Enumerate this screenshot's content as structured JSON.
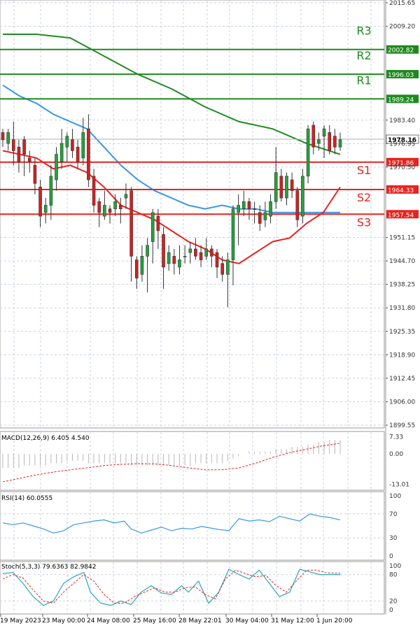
{
  "chart_data": {
    "type": "candlestick",
    "main": {
      "y_ticks": [
        "2015.65",
        "2009.20",
        "2002.82",
        "1996.03",
        "1989.24",
        "1983.40",
        "1978.16",
        "1976.95",
        "1971.86",
        "1970.50",
        "1964.33",
        "1957.54",
        "1951.15",
        "1944.70",
        "1938.25",
        "1931.80",
        "1925.35",
        "1918.90",
        "1912.45",
        "1906.00",
        "1899.55"
      ],
      "ylim": [
        1899.55,
        2015.65
      ],
      "levels": [
        {
          "label": "R3",
          "value": 2002.82,
          "color": "#1e8a1e"
        },
        {
          "label": "R2",
          "value": 1996.03,
          "color": "#1e8a1e"
        },
        {
          "label": "R1",
          "value": 1989.24,
          "color": "#1e8a1e"
        },
        {
          "label": "S1",
          "value": 1971.86,
          "color": "#e8231f"
        },
        {
          "label": "S2",
          "value": 1964.33,
          "color": "#e8231f"
        },
        {
          "label": "S3",
          "value": 1957.54,
          "color": "#e8231f"
        }
      ],
      "current_price": 1978.16,
      "candles": [
        [
          1980,
          1978,
          1981,
          1976
        ],
        [
          1977,
          1980,
          1981,
          1975
        ],
        [
          1978,
          1975,
          1983,
          1971
        ],
        [
          1976,
          1972,
          1978,
          1969
        ],
        [
          1978,
          1974,
          1979,
          1968
        ],
        [
          1973,
          1972,
          1975,
          1969
        ],
        [
          1971,
          1966,
          1973,
          1963
        ],
        [
          1965,
          1957,
          1967,
          1954
        ],
        [
          1958,
          1960,
          1962,
          1955
        ],
        [
          1960,
          1968,
          1971,
          1956
        ],
        [
          1967,
          1974,
          1976,
          1964
        ],
        [
          1972,
          1977,
          1981,
          1970
        ],
        [
          1976,
          1979,
          1980,
          1972
        ],
        [
          1978,
          1975,
          1981,
          1973
        ],
        [
          1976,
          1972,
          1978,
          1970
        ],
        [
          1973,
          1980,
          1984,
          1971
        ],
        [
          1981,
          1967,
          1985,
          1965
        ],
        [
          1968,
          1960,
          1970,
          1958
        ],
        [
          1961,
          1958,
          1962,
          1954
        ],
        [
          1957,
          1960,
          1964,
          1956
        ],
        [
          1959,
          1958,
          1960,
          1955
        ],
        [
          1959,
          1961,
          1963,
          1957
        ],
        [
          1960,
          1959,
          1962,
          1955
        ],
        [
          1962,
          1963,
          1966,
          1959
        ],
        [
          1964,
          1946,
          1965,
          1939
        ],
        [
          1945,
          1940,
          1946,
          1937
        ],
        [
          1941,
          1946,
          1949,
          1939
        ],
        [
          1946,
          1949,
          1951,
          1936
        ],
        [
          1950,
          1958,
          1959,
          1944
        ],
        [
          1957,
          1953,
          1959,
          1948
        ],
        [
          1952,
          1943,
          1954,
          1937
        ],
        [
          1944,
          1947,
          1949,
          1942
        ],
        [
          1946,
          1944,
          1948,
          1941
        ],
        [
          1943,
          1945,
          1949,
          1941
        ],
        [
          1946,
          1946,
          1949,
          1944
        ],
        [
          1947,
          1948,
          1950,
          1944
        ],
        [
          1948,
          1946,
          1951,
          1945
        ],
        [
          1947,
          1945,
          1949,
          1943
        ],
        [
          1946,
          1948,
          1951,
          1945
        ],
        [
          1948,
          1946,
          1949,
          1943
        ],
        [
          1947,
          1943,
          1948,
          1940
        ],
        [
          1944,
          1941,
          1946,
          1939
        ],
        [
          1941,
          1945,
          1947,
          1932
        ],
        [
          1945,
          1959,
          1960,
          1938
        ],
        [
          1958,
          1960,
          1963,
          1949
        ],
        [
          1959,
          1961,
          1964,
          1957
        ],
        [
          1961,
          1959,
          1962,
          1956
        ],
        [
          1959,
          1959,
          1961,
          1955
        ],
        [
          1958,
          1955,
          1960,
          1953
        ],
        [
          1956,
          1958,
          1961,
          1954
        ],
        [
          1957,
          1961,
          1963,
          1955
        ],
        [
          1961,
          1969,
          1976,
          1959
        ],
        [
          1968,
          1962,
          1970,
          1961
        ],
        [
          1962,
          1968,
          1969,
          1960
        ],
        [
          1967,
          1964,
          1969,
          1962
        ],
        [
          1964,
          1956,
          1965,
          1954
        ],
        [
          1957,
          1968,
          1970,
          1955
        ],
        [
          1968,
          1981,
          1982,
          1966
        ],
        [
          1982,
          1976,
          1983,
          1974
        ],
        [
          1977,
          1978,
          1980,
          1975
        ],
        [
          1979,
          1981,
          1982,
          1973
        ],
        [
          1980,
          1975,
          1982,
          1974
        ],
        [
          1979,
          1976,
          1981,
          1974
        ],
        [
          1976,
          1978,
          1980,
          1975
        ]
      ],
      "ma_blue": [
        [
          0,
          1993
        ],
        [
          0.05,
          1990
        ],
        [
          0.1,
          1988
        ],
        [
          0.15,
          1985
        ],
        [
          0.2,
          1983
        ],
        [
          0.25,
          1981
        ],
        [
          0.3,
          1976
        ],
        [
          0.35,
          1971
        ],
        [
          0.4,
          1967
        ],
        [
          0.45,
          1964
        ],
        [
          0.5,
          1962
        ],
        [
          0.55,
          1960
        ],
        [
          0.6,
          1959
        ],
        [
          0.65,
          1960
        ],
        [
          0.7,
          1959
        ],
        [
          0.75,
          1959
        ],
        [
          0.8,
          1958
        ],
        [
          0.85,
          1958
        ],
        [
          0.9,
          1958
        ],
        [
          0.95,
          1958
        ],
        [
          1,
          1958
        ]
      ],
      "ma_green": [
        [
          0,
          2007
        ],
        [
          0.1,
          2007
        ],
        [
          0.2,
          2006
        ],
        [
          0.3,
          2001
        ],
        [
          0.4,
          1996
        ],
        [
          0.5,
          1992
        ],
        [
          0.6,
          1987
        ],
        [
          0.7,
          1983
        ],
        [
          0.8,
          1981
        ],
        [
          0.9,
          1977
        ],
        [
          1,
          1974
        ]
      ],
      "ma_red": [
        [
          0,
          1975
        ],
        [
          0.05,
          1974
        ],
        [
          0.1,
          1973
        ],
        [
          0.15,
          1970
        ],
        [
          0.2,
          1971
        ],
        [
          0.25,
          1969
        ],
        [
          0.3,
          1965
        ],
        [
          0.35,
          1960
        ],
        [
          0.4,
          1958
        ],
        [
          0.45,
          1956
        ],
        [
          0.5,
          1953
        ],
        [
          0.55,
          1950
        ],
        [
          0.6,
          1948
        ],
        [
          0.65,
          1945
        ],
        [
          0.7,
          1944
        ],
        [
          0.75,
          1947
        ],
        [
          0.8,
          1950
        ],
        [
          0.85,
          1951
        ],
        [
          0.9,
          1955
        ],
        [
          0.95,
          1958
        ],
        [
          1,
          1965
        ]
      ]
    },
    "macd": {
      "label": "MACD(12,26,9) 6.405 4.540",
      "y_ticks": [
        "7.33",
        "0.00",
        "-13.01"
      ],
      "ylim": [
        -15,
        9
      ],
      "histogram": [
        -6,
        -6,
        -6,
        -6,
        -5,
        -5,
        -5,
        -5,
        -5,
        -4,
        -4,
        -4,
        -3,
        -3,
        -3,
        -3,
        -4,
        -4,
        -4,
        -4,
        -4,
        -4,
        -4,
        -4,
        -5,
        -5,
        -5,
        -5,
        -5,
        -5,
        -5,
        -5,
        -5,
        -5,
        -5,
        -5,
        -4,
        -4,
        -4,
        -4,
        -4,
        -4,
        -3,
        -2,
        -1,
        0,
        1,
        1,
        1,
        1,
        1,
        2,
        2,
        2,
        3,
        3,
        3,
        4,
        4,
        5,
        5,
        6,
        6,
        6
      ],
      "signal": [
        [
          0,
          -12
        ],
        [
          0.05,
          -10.5
        ],
        [
          0.1,
          -9
        ],
        [
          0.15,
          -7.8
        ],
        [
          0.2,
          -6.8
        ],
        [
          0.25,
          -6
        ],
        [
          0.3,
          -5
        ],
        [
          0.35,
          -4.5
        ],
        [
          0.4,
          -4.2
        ],
        [
          0.45,
          -4.3
        ],
        [
          0.5,
          -5
        ],
        [
          0.55,
          -6
        ],
        [
          0.6,
          -6.8
        ],
        [
          0.65,
          -6.8
        ],
        [
          0.7,
          -6
        ],
        [
          0.75,
          -4
        ],
        [
          0.8,
          -1.5
        ],
        [
          0.85,
          0.5
        ],
        [
          0.9,
          2
        ],
        [
          0.95,
          3.5
        ],
        [
          1,
          4.54
        ]
      ]
    },
    "rsi": {
      "label": "RSI(14) 60.0555",
      "y_ticks": [
        "100",
        "70",
        "30",
        "0"
      ],
      "ylim": [
        0,
        100
      ],
      "values": [
        [
          0,
          55
        ],
        [
          0.03,
          52
        ],
        [
          0.06,
          55
        ],
        [
          0.09,
          50
        ],
        [
          0.12,
          45
        ],
        [
          0.15,
          38
        ],
        [
          0.18,
          42
        ],
        [
          0.21,
          52
        ],
        [
          0.24,
          55
        ],
        [
          0.27,
          58
        ],
        [
          0.3,
          60
        ],
        [
          0.33,
          55
        ],
        [
          0.36,
          58
        ],
        [
          0.38,
          45
        ],
        [
          0.41,
          38
        ],
        [
          0.44,
          43
        ],
        [
          0.47,
          48
        ],
        [
          0.5,
          42
        ],
        [
          0.53,
          46
        ],
        [
          0.56,
          45
        ],
        [
          0.59,
          49
        ],
        [
          0.62,
          46
        ],
        [
          0.64,
          44
        ],
        [
          0.67,
          42
        ],
        [
          0.7,
          62
        ],
        [
          0.73,
          58
        ],
        [
          0.76,
          60
        ],
        [
          0.79,
          57
        ],
        [
          0.82,
          66
        ],
        [
          0.85,
          62
        ],
        [
          0.88,
          58
        ],
        [
          0.91,
          70
        ],
        [
          0.94,
          66
        ],
        [
          0.97,
          64
        ],
        [
          1,
          60
        ]
      ]
    },
    "stoch": {
      "label": "Stoch(5,3,3) 79.6363 82.9842",
      "y_ticks": [
        "100",
        "80",
        "20",
        "0"
      ],
      "ylim": [
        0,
        100
      ],
      "k": [
        [
          0,
          82
        ],
        [
          0.03,
          85
        ],
        [
          0.06,
          60
        ],
        [
          0.09,
          30
        ],
        [
          0.12,
          10
        ],
        [
          0.15,
          20
        ],
        [
          0.18,
          60
        ],
        [
          0.21,
          75
        ],
        [
          0.24,
          85
        ],
        [
          0.26,
          40
        ],
        [
          0.29,
          15
        ],
        [
          0.32,
          10
        ],
        [
          0.35,
          20
        ],
        [
          0.38,
          12
        ],
        [
          0.41,
          40
        ],
        [
          0.44,
          55
        ],
        [
          0.47,
          38
        ],
        [
          0.5,
          35
        ],
        [
          0.53,
          55
        ],
        [
          0.55,
          40
        ],
        [
          0.58,
          65
        ],
        [
          0.61,
          15
        ],
        [
          0.64,
          40
        ],
        [
          0.67,
          92
        ],
        [
          0.7,
          80
        ],
        [
          0.73,
          70
        ],
        [
          0.76,
          90
        ],
        [
          0.79,
          60
        ],
        [
          0.82,
          30
        ],
        [
          0.85,
          40
        ],
        [
          0.88,
          92
        ],
        [
          0.91,
          86
        ],
        [
          0.94,
          80
        ],
        [
          1,
          80
        ]
      ],
      "d": [
        [
          0,
          70
        ],
        [
          0.03,
          80
        ],
        [
          0.06,
          72
        ],
        [
          0.09,
          45
        ],
        [
          0.12,
          20
        ],
        [
          0.15,
          15
        ],
        [
          0.18,
          40
        ],
        [
          0.21,
          60
        ],
        [
          0.24,
          80
        ],
        [
          0.27,
          65
        ],
        [
          0.3,
          35
        ],
        [
          0.33,
          15
        ],
        [
          0.36,
          15
        ],
        [
          0.39,
          30
        ],
        [
          0.42,
          40
        ],
        [
          0.45,
          50
        ],
        [
          0.48,
          40
        ],
        [
          0.51,
          40
        ],
        [
          0.54,
          50
        ],
        [
          0.57,
          52
        ],
        [
          0.6,
          35
        ],
        [
          0.63,
          25
        ],
        [
          0.66,
          70
        ],
        [
          0.69,
          90
        ],
        [
          0.72,
          82
        ],
        [
          0.75,
          75
        ],
        [
          0.78,
          78
        ],
        [
          0.81,
          55
        ],
        [
          0.84,
          40
        ],
        [
          0.87,
          65
        ],
        [
          0.9,
          90
        ],
        [
          0.93,
          90
        ],
        [
          0.96,
          84
        ],
        [
          1,
          83
        ]
      ]
    },
    "x_ticks": [
      "19 May 2023",
      "23 May 00:00",
      "24 May 08:00",
      "25 May 16:00",
      "28 May 22:01",
      "30 May 04:00",
      "31 May 12:00",
      "1 Jun 20:00"
    ]
  }
}
